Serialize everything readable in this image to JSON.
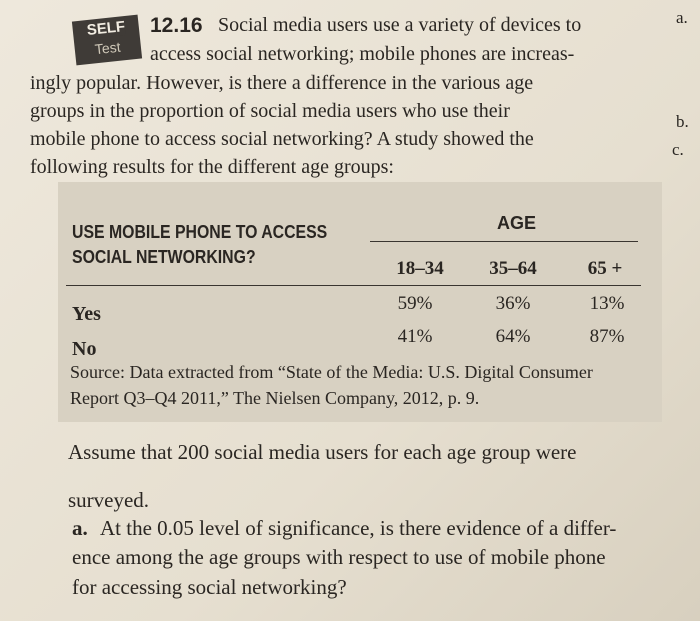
{
  "margin_labels": [
    "a.",
    "b.",
    "c."
  ],
  "exercise": {
    "badge": [
      "SELF",
      "Test"
    ],
    "number": "12.16",
    "lines": [
      "Social media users use a variety of devices to",
      "access social networking; mobile phones are increas-",
      "ingly popular. However, is there a difference in the various age",
      "groups in the proportion of social media users who use their",
      "mobile phone to access social networking? A study showed the",
      "following results for the different age groups:"
    ]
  },
  "table": {
    "row_header": [
      "USE MOBILE PHONE TO ACCESS",
      "SOCIAL NETWORKING?"
    ],
    "group_header": "AGE",
    "columns": [
      "18–34",
      "35–64",
      "65 +"
    ],
    "rows": [
      [
        "Yes",
        "59%",
        "36%",
        "13%"
      ],
      [
        "No",
        "41%",
        "64%",
        "87%"
      ]
    ],
    "source": [
      "Source: Data extracted from “State of the Media: U.S. Digital Consumer",
      "Report Q3–Q4 2011,” The Nielsen Company, 2012, p. 9."
    ]
  },
  "assumption": [
    "Assume that 200 social media users for each age group were",
    "surveyed."
  ],
  "part_a": {
    "label": "a.",
    "lines": [
      "At the 0.05 level of significance, is there evidence of a differ-",
      "ence among the age groups with respect to use of mobile phone",
      "for accessing social networking?"
    ]
  }
}
